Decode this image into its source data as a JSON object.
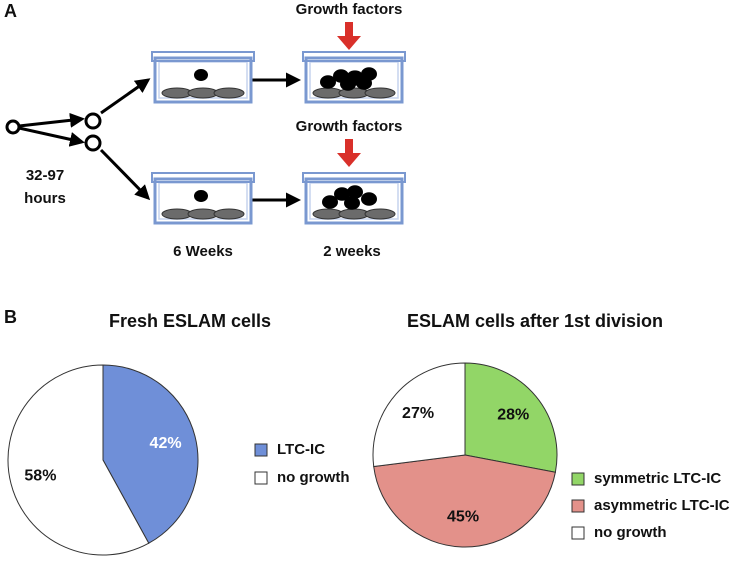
{
  "panel_labels": [
    "A",
    "B"
  ],
  "diagram": {
    "duration_label": [
      "32-97",
      "hours"
    ],
    "growth_factors": [
      "Growth factors",
      "Growth factors"
    ],
    "stage_labels": [
      "6 Weeks",
      "2 weeks"
    ]
  },
  "chart_data": [
    {
      "type": "pie",
      "title": "Fresh ESLAM cells",
      "categories": [
        "LTC-IC",
        "no growth"
      ],
      "values": [
        42,
        58
      ],
      "value_labels": [
        "42%",
        "58%"
      ],
      "colors": [
        "#6f8fd8",
        "#ffffff"
      ]
    },
    {
      "type": "pie",
      "title": "ESLAM cells after 1st division",
      "categories": [
        "symmetric LTC-IC",
        "asymmetric LTC-IC",
        "no growth"
      ],
      "values": [
        28,
        45,
        27
      ],
      "value_labels": [
        "28%",
        "45%",
        "27%"
      ],
      "colors": [
        "#92d667",
        "#e3918a",
        "#ffffff"
      ]
    }
  ]
}
